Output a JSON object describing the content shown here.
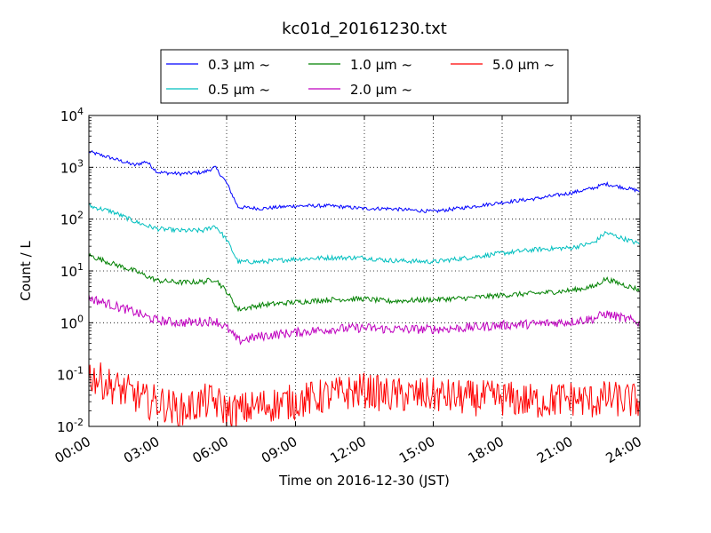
{
  "chart_data": {
    "type": "line",
    "title": "kc01d_20161230.txt",
    "xlabel": "Time on 2016-12-30 (JST)",
    "ylabel": "Count / L",
    "y_scale": "log",
    "ylim": [
      0.01,
      10000
    ],
    "xlim": [
      "00:00",
      "24:00"
    ],
    "grid": true,
    "legend_placement": "top-center",
    "x_ticks": [
      "00:00",
      "03:00",
      "06:00",
      "09:00",
      "12:00",
      "15:00",
      "18:00",
      "21:00",
      "24:00"
    ],
    "y_ticks": [
      {
        "base": "10",
        "exp": "-2",
        "value": 0.01
      },
      {
        "base": "10",
        "exp": "-1",
        "value": 0.1
      },
      {
        "base": "10",
        "exp": "0",
        "value": 1
      },
      {
        "base": "10",
        "exp": "1",
        "value": 10
      },
      {
        "base": "10",
        "exp": "2",
        "value": 100
      },
      {
        "base": "10",
        "exp": "3",
        "value": 1000
      },
      {
        "base": "10",
        "exp": "4",
        "value": 10000
      }
    ],
    "x": [
      "00:00",
      "01:00",
      "02:00",
      "02:30",
      "03:00",
      "04:00",
      "05:00",
      "05:30",
      "06:00",
      "06:30",
      "07:30",
      "09:00",
      "10:30",
      "12:00",
      "13:00",
      "15:00",
      "16:30",
      "18:00",
      "19:30",
      "21:00",
      "22:00",
      "22:30",
      "24:00"
    ],
    "series": [
      {
        "name": "0.3 μm ~",
        "color": "#0000ff",
        "values": [
          2000,
          1500,
          1100,
          1300,
          800,
          750,
          800,
          1000,
          500,
          170,
          160,
          180,
          180,
          160,
          160,
          140,
          170,
          210,
          250,
          320,
          400,
          480,
          350
        ]
      },
      {
        "name": "0.5 μm ~",
        "color": "#00bfbf",
        "values": [
          180,
          140,
          90,
          75,
          65,
          60,
          60,
          75,
          40,
          15,
          15,
          17,
          18,
          18,
          16,
          15,
          18,
          22,
          26,
          28,
          35,
          55,
          33
        ]
      },
      {
        "name": "1.0 μm ~",
        "color": "#008000",
        "values": [
          20,
          14,
          10,
          8,
          6.5,
          6,
          6.2,
          7,
          4,
          1.8,
          2.2,
          2.5,
          2.8,
          2.9,
          2.6,
          2.8,
          3.0,
          3.4,
          3.7,
          4.2,
          5.0,
          7.0,
          4.3
        ]
      },
      {
        "name": "2.0 μm ~",
        "color": "#bf00bf",
        "values": [
          3.0,
          2.2,
          1.6,
          1.3,
          1.1,
          1.0,
          1.05,
          1.1,
          0.8,
          0.45,
          0.55,
          0.65,
          0.75,
          0.8,
          0.75,
          0.75,
          0.8,
          0.9,
          0.95,
          1.05,
          1.2,
          1.5,
          1.0
        ]
      },
      {
        "name": "5.0 μm ~",
        "color": "#ff0000",
        "values": [
          0.1,
          0.06,
          0.04,
          0.03,
          0.03,
          0.02,
          0.03,
          0.03,
          0.02,
          0.02,
          0.025,
          0.03,
          0.04,
          0.05,
          0.04,
          0.04,
          0.035,
          0.035,
          0.03,
          0.035,
          0.03,
          0.035,
          0.03
        ]
      }
    ]
  }
}
